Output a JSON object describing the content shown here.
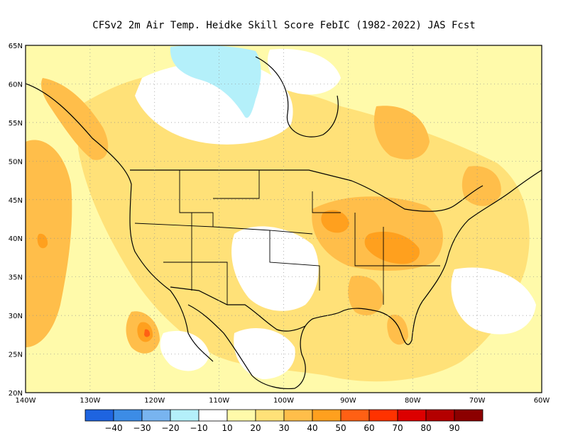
{
  "title": "CFSv2  2m Air Temp. Heidke Skill Score FebIC (1982-2022) JAS Fcst",
  "map": {
    "region": "contiguous-united-states",
    "lon_range": [
      -140,
      -60
    ],
    "lat_range": [
      20,
      65
    ],
    "grid": true
  },
  "lat_labels": [
    "65N",
    "60N",
    "55N",
    "50N",
    "45N",
    "40N",
    "35N",
    "30N",
    "25N",
    "20N"
  ],
  "lon_labels": [
    "140W",
    "130W",
    "120W",
    "110W",
    "100W",
    "90W",
    "80W",
    "70W",
    "60W"
  ],
  "colorbar": {
    "colors": [
      "#1e64e0",
      "#3c8ce6",
      "#78b4f0",
      "#b4f0fa",
      "#ffffff",
      "#fffaaa",
      "#ffe178",
      "#ffbe4a",
      "#ffa01e",
      "#ff6014",
      "#ff3200",
      "#dc0000",
      "#b40000",
      "#8c0000"
    ],
    "ticks": [
      "−40",
      "−30",
      "−20",
      "−10",
      "10",
      "20",
      "30",
      "40",
      "50",
      "60",
      "70",
      "80",
      "90"
    ]
  },
  "field_palette": {
    "white": "#ffffff",
    "pale_yellow": "#fffaaa",
    "yellow": "#ffe178",
    "light_orange": "#ffbe4a",
    "orange": "#ffa01e",
    "dark_orange": "#ff6014",
    "cyan": "#b4f0fa"
  }
}
